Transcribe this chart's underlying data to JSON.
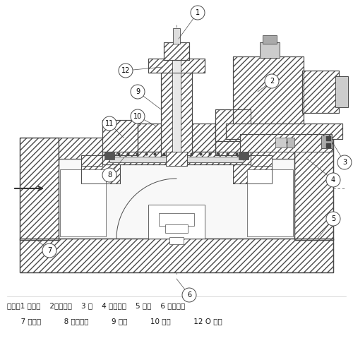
{
  "background_color": "#ffffff",
  "line_color": "#4a4a4a",
  "caption_line1": "图示：1 复位杆    2电磁线圈    3 盖    4 固定螺丝    5 阀座    6 固定螺母",
  "caption_line2": "      7 固定盘          8 密封橡胶          9 弹簧          10 铝垫          12 O 型圈",
  "fig_width": 5.0,
  "fig_height": 5.03,
  "dpi": 100
}
